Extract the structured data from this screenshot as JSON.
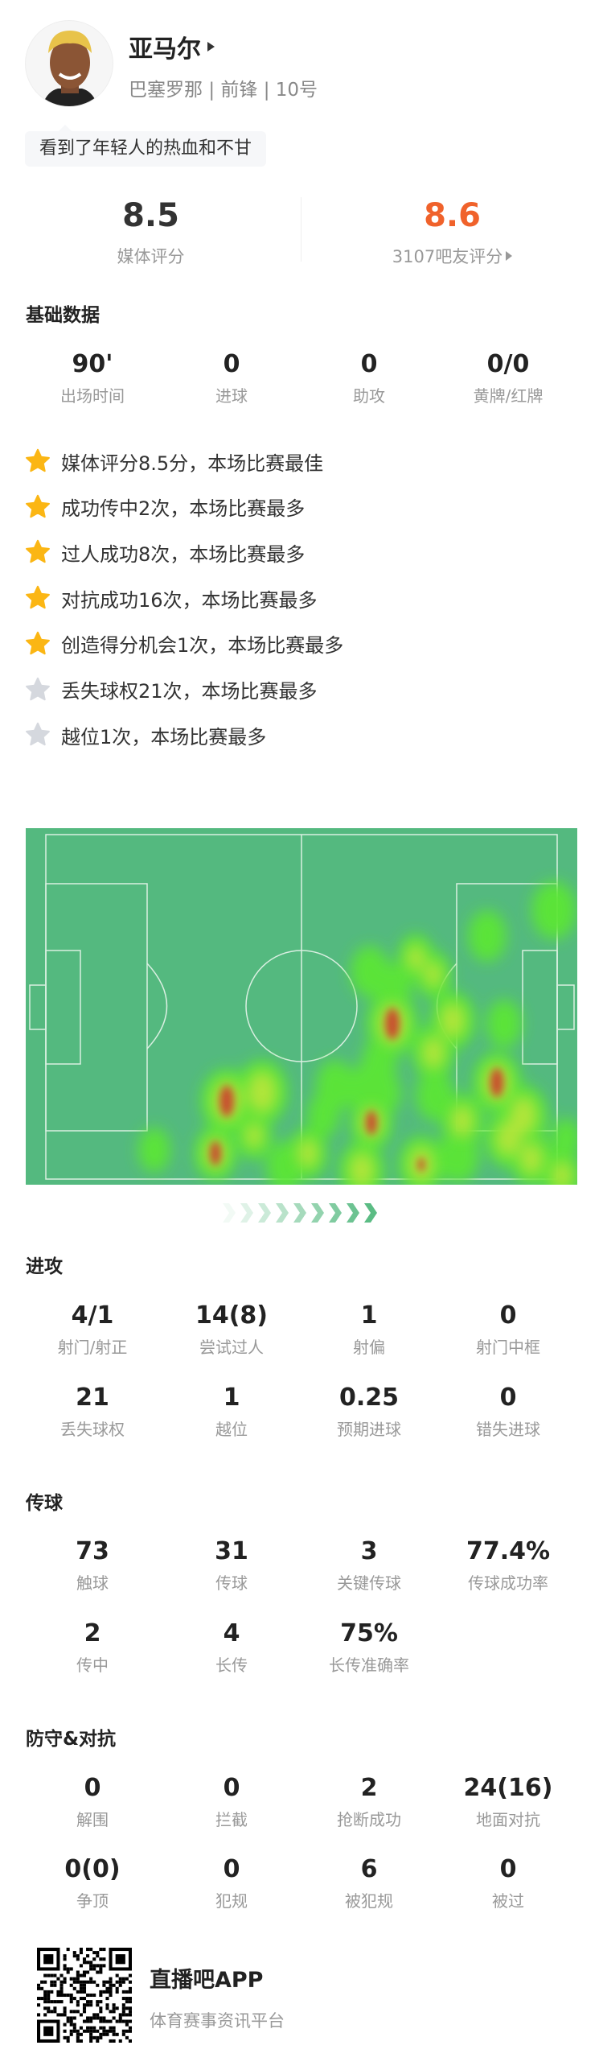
{
  "player": {
    "name": "亚马尔",
    "team": "巴塞罗那",
    "position": "前锋",
    "number": "10号",
    "separator": "|",
    "quote": "看到了年轻人的热血和不甘"
  },
  "ratings": {
    "media_value": "8.5",
    "media_label": "媒体评分",
    "fan_value": "8.6",
    "fan_label": "3107吧友评分",
    "fan_color": "#f0622b"
  },
  "basic": {
    "title": "基础数据",
    "items": [
      {
        "value": "90'",
        "label": "出场时间"
      },
      {
        "value": "0",
        "label": "进球"
      },
      {
        "value": "0",
        "label": "助攻"
      },
      {
        "value": "0/0",
        "label": "黄牌/红牌"
      }
    ]
  },
  "highlights": [
    {
      "text": "媒体评分8.5分，本场比赛最佳",
      "icon": "star-gold"
    },
    {
      "text": "成功传中2次，本场比赛最多",
      "icon": "star-gold"
    },
    {
      "text": "过人成功8次，本场比赛最多",
      "icon": "star-gold"
    },
    {
      "text": "对抗成功16次，本场比赛最多",
      "icon": "star-gold"
    },
    {
      "text": "创造得分机会1次，本场比赛最多",
      "icon": "star-gold"
    },
    {
      "text": "丢失球权21次，本场比赛最多",
      "icon": "star-gray"
    },
    {
      "text": "越位1次，本场比赛最多",
      "icon": "star-gray"
    }
  ],
  "colors": {
    "star_gold": "#fbb614",
    "star_gray": "#d5d8de",
    "pitch": "#54b97f"
  },
  "attack": {
    "title": "进攻",
    "items": [
      {
        "value": "4/1",
        "label": "射门/射正"
      },
      {
        "value": "14(8)",
        "label": "尝试过人"
      },
      {
        "value": "1",
        "label": "射偏"
      },
      {
        "value": "0",
        "label": "射门中框"
      },
      {
        "value": "21",
        "label": "丢失球权"
      },
      {
        "value": "1",
        "label": "越位"
      },
      {
        "value": "0.25",
        "label": "预期进球"
      },
      {
        "value": "0",
        "label": "错失进球"
      }
    ]
  },
  "passing": {
    "title": "传球",
    "items": [
      {
        "value": "73",
        "label": "触球"
      },
      {
        "value": "31",
        "label": "传球"
      },
      {
        "value": "3",
        "label": "关键传球"
      },
      {
        "value": "77.4%",
        "label": "传球成功率"
      },
      {
        "value": "2",
        "label": "传中"
      },
      {
        "value": "4",
        "label": "长传"
      },
      {
        "value": "75%",
        "label": "长传准确率"
      }
    ]
  },
  "defense": {
    "title": "防守&对抗",
    "items": [
      {
        "value": "0",
        "label": "解围"
      },
      {
        "value": "0",
        "label": "拦截"
      },
      {
        "value": "2",
        "label": "抢断成功"
      },
      {
        "value": "24(16)",
        "label": "地面对抗"
      },
      {
        "value": "0(0)",
        "label": "争顶"
      },
      {
        "value": "0",
        "label": "犯规"
      },
      {
        "value": "6",
        "label": "被犯规"
      },
      {
        "value": "0",
        "label": "被过"
      }
    ]
  },
  "footer": {
    "app_name": "直播吧APP",
    "tagline": "体育赛事资讯平台"
  }
}
